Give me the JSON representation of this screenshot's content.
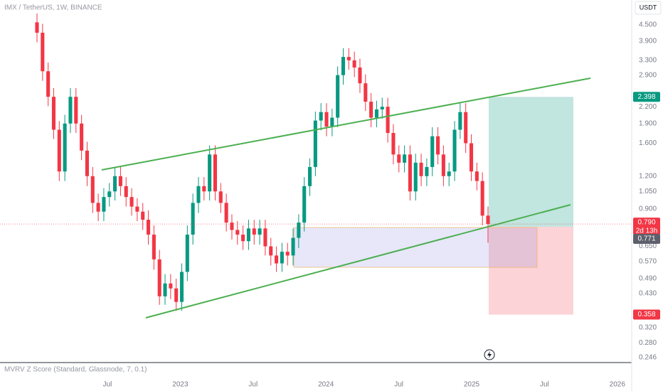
{
  "chart_data": {
    "type": "candlestick",
    "title": "IMX / TetherUS, 1W, BINANCE",
    "currency": "USDT",
    "indicator": "MVRV Z Score (Standard, Glassnode, 7, 0.1)",
    "log": true,
    "up_color": "#089981",
    "down_color": "#f23645",
    "ylim": [
      0.2355,
      5.59
    ],
    "yticks": [
      {
        "value": 4.5,
        "label": "4.500"
      },
      {
        "value": 3.9,
        "label": "3.900"
      },
      {
        "value": 3.3,
        "label": "3.300"
      },
      {
        "value": 2.9,
        "label": "2.900"
      },
      {
        "value": 2.2,
        "label": "2.200"
      },
      {
        "value": 1.9,
        "label": "1.900"
      },
      {
        "value": 1.6,
        "label": "1.600"
      },
      {
        "value": 1.2,
        "label": "1.200"
      },
      {
        "value": 1.05,
        "label": "1.050"
      },
      {
        "value": 0.9,
        "label": "0.900"
      },
      {
        "value": 0.65,
        "label": "0.650"
      },
      {
        "value": 0.57,
        "label": "0.570"
      },
      {
        "value": 0.49,
        "label": "0.490"
      },
      {
        "value": 0.43,
        "label": "0.430"
      },
      {
        "value": 0.32,
        "label": "0.320"
      },
      {
        "value": 0.28,
        "label": "0.280"
      },
      0.246
    ],
    "x_tick_labels": [
      "Jul",
      "2023",
      "Jul",
      "2024",
      "Jul",
      "2025",
      "Jul",
      "2026"
    ],
    "last_price": {
      "value": 0.79,
      "label": "0.790"
    },
    "countdown": "2d 13h",
    "target": 2.398,
    "entry": 0.771,
    "stop": 0.358,
    "open": [
      4.6,
      4.2,
      3.0,
      2.4,
      1.8,
      1.25,
      1.9,
      2.4,
      1.9,
      1.5,
      1.2,
      0.95,
      0.88,
      1.0,
      1.05,
      1.2,
      1.1,
      1.0,
      0.92,
      0.88,
      0.82,
      0.72,
      0.58,
      0.42,
      0.47,
      0.45,
      0.4,
      0.52,
      0.72,
      0.95,
      1.1,
      1.05,
      1.45,
      1.05,
      0.95,
      0.8,
      0.75,
      0.72,
      0.68,
      0.76,
      0.72,
      0.76,
      0.65,
      0.6,
      0.56,
      0.62,
      0.6,
      0.7,
      0.8,
      1.1,
      1.3,
      1.95,
      2.1,
      1.85,
      2.0,
      2.9,
      3.4,
      3.3,
      3.1,
      2.7,
      2.3,
      2.0,
      2.15,
      2.2,
      1.75,
      1.45,
      1.35,
      1.45,
      1.05,
      1.35,
      1.2,
      1.3,
      1.7,
      1.45,
      1.2,
      1.25,
      1.8,
      2.1,
      1.6,
      1.25,
      1.15,
      0.85
    ],
    "high": [
      4.97,
      4.54,
      3.24,
      2.59,
      1.94,
      2.05,
      2.59,
      2.59,
      2.05,
      1.62,
      1.3,
      1.03,
      1.08,
      1.13,
      1.3,
      1.3,
      1.19,
      1.08,
      0.99,
      0.95,
      0.89,
      0.78,
      0.63,
      0.51,
      0.51,
      0.49,
      0.56,
      0.78,
      1.03,
      1.19,
      1.19,
      1.57,
      1.57,
      1.13,
      1.03,
      0.86,
      0.81,
      0.78,
      0.82,
      0.82,
      0.82,
      0.82,
      0.7,
      0.65,
      0.67,
      0.67,
      0.76,
      0.86,
      1.19,
      1.4,
      2.11,
      2.27,
      2.27,
      2.16,
      3.13,
      3.67,
      3.67,
      3.56,
      3.35,
      2.92,
      2.48,
      2.32,
      2.38,
      2.38,
      1.89,
      1.57,
      1.57,
      1.57,
      1.46,
      1.46,
      1.4,
      1.84,
      1.84,
      1.57,
      1.35,
      1.94,
      2.27,
      2.27,
      1.73,
      1.35,
      1.24,
      0.92
    ],
    "low": [
      3.86,
      2.76,
      2.21,
      1.66,
      1.15,
      1.15,
      1.75,
      1.75,
      1.38,
      1.1,
      0.87,
      0.81,
      0.81,
      0.92,
      0.97,
      1.01,
      0.92,
      0.85,
      0.81,
      0.75,
      0.66,
      0.53,
      0.39,
      0.39,
      0.41,
      0.37,
      0.37,
      0.48,
      0.66,
      0.87,
      0.97,
      0.97,
      0.97,
      0.87,
      0.74,
      0.69,
      0.66,
      0.63,
      0.63,
      0.66,
      0.66,
      0.6,
      0.55,
      0.52,
      0.52,
      0.55,
      0.55,
      0.64,
      0.74,
      1.01,
      1.2,
      1.79,
      1.7,
      1.7,
      1.84,
      2.67,
      3.04,
      2.85,
      2.48,
      2.12,
      1.84,
      1.84,
      1.98,
      1.61,
      1.33,
      1.24,
      1.24,
      0.97,
      0.97,
      1.1,
      1.1,
      1.2,
      1.33,
      1.1,
      1.1,
      1.15,
      1.66,
      1.47,
      1.15,
      1.06,
      0.78,
      0.67
    ],
    "close": [
      4.2,
      3.0,
      2.4,
      1.8,
      1.25,
      1.9,
      2.4,
      1.9,
      1.5,
      1.2,
      0.95,
      0.88,
      1.0,
      1.05,
      1.2,
      1.1,
      1.0,
      0.92,
      0.88,
      0.82,
      0.72,
      0.58,
      0.42,
      0.47,
      0.45,
      0.4,
      0.52,
      0.72,
      0.95,
      1.1,
      1.05,
      1.45,
      1.05,
      0.95,
      0.8,
      0.75,
      0.72,
      0.68,
      0.76,
      0.72,
      0.76,
      0.65,
      0.6,
      0.56,
      0.62,
      0.6,
      0.7,
      0.8,
      1.1,
      1.3,
      1.95,
      2.1,
      1.85,
      2.0,
      2.9,
      3.4,
      3.3,
      3.1,
      2.7,
      2.3,
      2.0,
      2.15,
      2.2,
      1.75,
      1.45,
      1.35,
      1.45,
      1.05,
      1.35,
      1.2,
      1.3,
      1.7,
      1.45,
      1.2,
      1.25,
      1.8,
      2.1,
      1.6,
      1.25,
      1.15,
      0.85,
      0.79
    ]
  }
}
